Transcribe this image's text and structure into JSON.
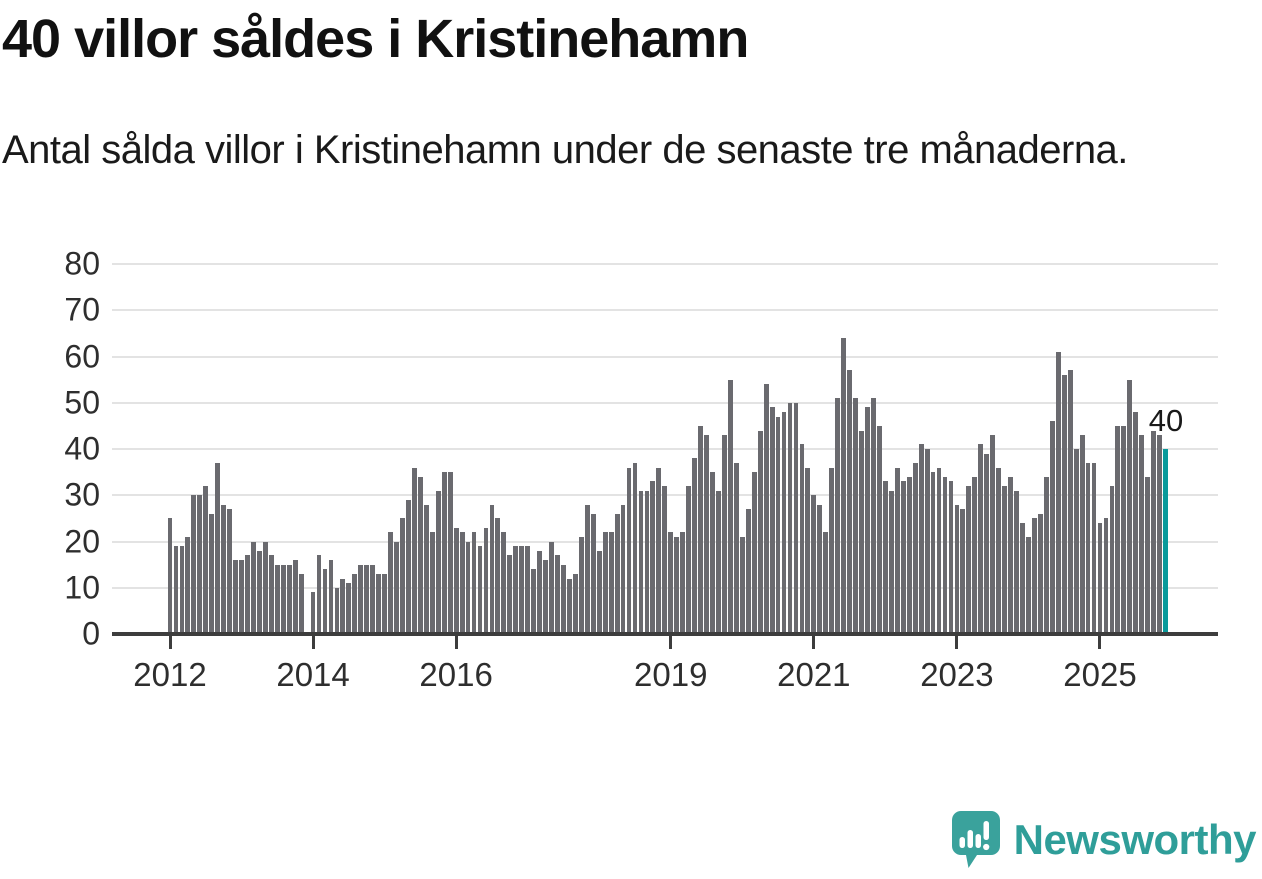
{
  "header": {
    "title": "40 villor såldes i Kristinehamn",
    "subtitle": "Antal sålda villor i Kristinehamn under de senaste tre månaderna."
  },
  "annotation": {
    "last_value_label": "40"
  },
  "logo": {
    "text": "Newsworthy",
    "icon": "newsworthy-speech-bubble-chart-icon"
  },
  "colors": {
    "bar": "#6a6a6f",
    "highlight": "#0a9a9b",
    "axis": "#3d3d3d",
    "grid": "#e3e3e3",
    "logo_teal": "#2f9e99"
  },
  "chart_data": {
    "type": "bar",
    "title": "40 villor såldes i Kristinehamn",
    "subtitle": "Antal sålda villor i Kristinehamn under de senaste tre månaderna.",
    "xlabel": "",
    "ylabel": "",
    "start_month": "2012-01",
    "frequency": "monthly",
    "ylim": [
      0,
      80
    ],
    "y_ticks": [
      0,
      10,
      20,
      30,
      40,
      50,
      60,
      70,
      80
    ],
    "x_tick_years": [
      2012,
      2014,
      2016,
      2019,
      2021,
      2023,
      2025
    ],
    "grid": "horizontal",
    "highlight_last_bar": true,
    "last_value_label": "40",
    "series": [
      {
        "name": "Antal sålda villor (rullande tre månader)",
        "values": [
          25,
          19,
          19,
          21,
          30,
          30,
          32,
          26,
          37,
          28,
          27,
          16,
          16,
          17,
          20,
          18,
          20,
          17,
          15,
          15,
          15,
          16,
          13,
          0,
          9,
          17,
          14,
          16,
          10,
          12,
          11,
          13,
          15,
          15,
          15,
          13,
          13,
          22,
          20,
          25,
          29,
          36,
          34,
          28,
          22,
          31,
          35,
          35,
          23,
          22,
          20,
          22,
          19,
          23,
          28,
          25,
          22,
          17,
          19,
          19,
          19,
          14,
          18,
          16,
          20,
          17,
          15,
          12,
          13,
          21,
          28,
          26,
          18,
          22,
          22,
          26,
          28,
          36,
          37,
          31,
          31,
          33,
          36,
          32,
          22,
          21,
          22,
          32,
          38,
          45,
          43,
          35,
          31,
          43,
          55,
          37,
          21,
          27,
          35,
          44,
          54,
          49,
          47,
          48,
          50,
          50,
          41,
          36,
          30,
          28,
          22,
          36,
          51,
          64,
          57,
          51,
          44,
          49,
          51,
          45,
          33,
          31,
          36,
          33,
          34,
          37,
          41,
          40,
          35,
          36,
          34,
          33,
          28,
          27,
          32,
          34,
          41,
          39,
          43,
          36,
          32,
          34,
          31,
          24,
          21,
          25,
          26,
          34,
          46,
          61,
          56,
          57,
          40,
          43,
          37,
          37,
          24,
          25,
          32,
          45,
          45,
          55,
          48,
          43,
          34,
          44,
          43,
          40
        ]
      }
    ]
  }
}
